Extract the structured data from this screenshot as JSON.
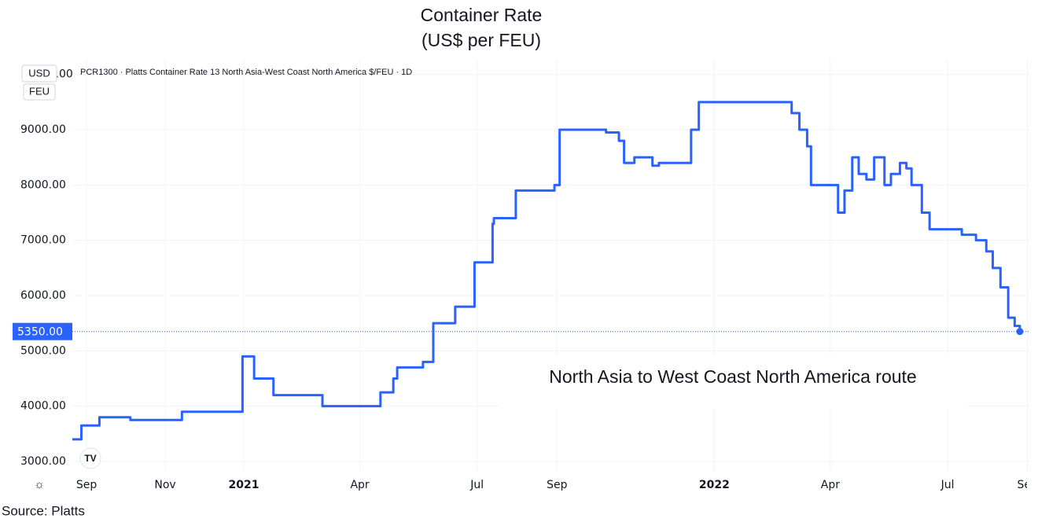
{
  "chart_data": {
    "type": "line",
    "title": "Container Rate",
    "subtitle": "(US$ per FEU)",
    "legend_header": "PCR1300 · Platts Container Rate 13 North Asia-West Coast North America $/FEU · 1D",
    "currency": "USD",
    "unit": "FEU",
    "annotation": "North Asia to West Coast North America route",
    "source": "Source: Platts",
    "step": true,
    "grid": true,
    "x": [
      "2020-08-21",
      "2020-08-28",
      "2020-09-11",
      "2020-10-05",
      "2020-11-14",
      "2020-12-31",
      "2021-01-09",
      "2021-01-24",
      "2021-03-03",
      "2021-04-17",
      "2021-04-27",
      "2021-04-30",
      "2021-05-20",
      "2021-05-28",
      "2021-06-14",
      "2021-06-29",
      "2021-07-13",
      "2021-07-14",
      "2021-07-31",
      "2021-08-30",
      "2021-09-03",
      "2021-10-09",
      "2021-10-19",
      "2021-10-23",
      "2021-10-31",
      "2021-11-14",
      "2021-11-19",
      "2021-12-14",
      "2021-12-20",
      "2022-03-02",
      "2022-03-08",
      "2022-03-14",
      "2022-03-17",
      "2022-04-07",
      "2022-04-12",
      "2022-04-18",
      "2022-04-23",
      "2022-04-29",
      "2022-05-05",
      "2022-05-13",
      "2022-05-18",
      "2022-05-25",
      "2022-05-30",
      "2022-06-03",
      "2022-06-11",
      "2022-06-17",
      "2022-07-12",
      "2022-07-23",
      "2022-07-31",
      "2022-08-05",
      "2022-08-11",
      "2022-08-17",
      "2022-08-22",
      "2022-08-26"
    ],
    "series": [
      {
        "name": "PCR1300",
        "color": "#2962ff",
        "values": [
          3400,
          3650,
          3800,
          3750,
          3900,
          4900,
          4500,
          4200,
          4000,
          4250,
          4500,
          4700,
          4800,
          5500,
          5800,
          6600,
          7300,
          7400,
          7900,
          8000,
          9000,
          8950,
          8800,
          8400,
          8500,
          8350,
          8400,
          9000,
          9500,
          9300,
          9000,
          8700,
          8000,
          7500,
          7900,
          8500,
          8200,
          8100,
          8500,
          8000,
          8200,
          8400,
          8300,
          8000,
          7500,
          7200,
          7100,
          7000,
          6800,
          6500,
          6150,
          5600,
          5450,
          5350
        ]
      }
    ],
    "last_value_label": "5350.00",
    "xlim": [
      "2020-08-21",
      "2022-09-03"
    ],
    "xticks": [
      {
        "value": "2020-09-01",
        "label": "Sep"
      },
      {
        "value": "2020-11-01",
        "label": "Nov"
      },
      {
        "value": "2021-01-01",
        "label": "2021"
      },
      {
        "value": "2021-04-01",
        "label": "Apr"
      },
      {
        "value": "2021-07-01",
        "label": "Jul"
      },
      {
        "value": "2021-09-01",
        "label": "Sep"
      },
      {
        "value": "2022-01-01",
        "label": "2022"
      },
      {
        "value": "2022-04-01",
        "label": "Apr"
      },
      {
        "value": "2022-07-01",
        "label": "Jul"
      },
      {
        "value": "2022-09-01",
        "label": "Sep"
      }
    ],
    "ylim": [
      2815,
      10280
    ],
    "yticks": [
      {
        "value": 3000,
        "label": "3000.00"
      },
      {
        "value": 4000,
        "label": "4000.00"
      },
      {
        "value": 5000,
        "label": "5000.00"
      },
      {
        "value": 6000,
        "label": "6000.00"
      },
      {
        "value": 7000,
        "label": "7000.00"
      },
      {
        "value": 8000,
        "label": "8000.00"
      },
      {
        "value": 9000,
        "label": "9000.00"
      },
      {
        "value": 10000,
        "label": "10000.00"
      }
    ]
  }
}
